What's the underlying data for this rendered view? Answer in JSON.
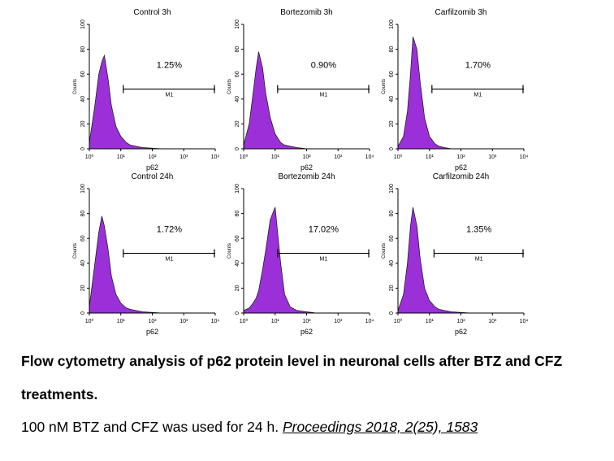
{
  "chart_data": [
    {
      "type": "area",
      "title": "Control 3h",
      "x_label": "p62",
      "y_label": "Counts",
      "xscale": "log",
      "color": "#9b30d9",
      "x": [
        1,
        1.5,
        2,
        2.5,
        3,
        4,
        5,
        7,
        10,
        15,
        20,
        30,
        50,
        100,
        200,
        1000
      ],
      "values": [
        5,
        35,
        60,
        70,
        75,
        55,
        35,
        18,
        10,
        5,
        3,
        2,
        1,
        0.5,
        0,
        0
      ],
      "xlim": [
        1,
        10000
      ],
      "ylim": [
        0,
        100
      ],
      "xticks": [
        {
          "value": 1,
          "label": "10⁰"
        },
        {
          "value": 10,
          "label": "10¹"
        },
        {
          "value": 100,
          "label": "10²"
        },
        {
          "value": 1000,
          "label": "10³"
        },
        {
          "value": 10000,
          "label": "10⁴"
        }
      ],
      "yticks": [
        0,
        20,
        40,
        60,
        80,
        100
      ],
      "gate": {
        "range": [
          12,
          10000
        ],
        "label": "M1",
        "percent": "1.25%"
      }
    },
    {
      "type": "area",
      "title": "Bortezomib 3h",
      "x_label": "p62",
      "y_label": "Counts",
      "xscale": "log",
      "color": "#9b30d9",
      "x": [
        1,
        1.5,
        2,
        2.5,
        3,
        4,
        5,
        7,
        10,
        15,
        20,
        30,
        50,
        100,
        200,
        1000
      ],
      "values": [
        3,
        20,
        45,
        65,
        78,
        65,
        45,
        25,
        12,
        5,
        3,
        2,
        1,
        0,
        0,
        0
      ],
      "xlim": [
        1,
        10000
      ],
      "ylim": [
        0,
        100
      ],
      "xticks": [
        {
          "value": 1,
          "label": "10⁰"
        },
        {
          "value": 10,
          "label": "10¹"
        },
        {
          "value": 100,
          "label": "10²"
        },
        {
          "value": 1000,
          "label": "10³"
        },
        {
          "value": 10000,
          "label": "10⁴"
        }
      ],
      "yticks": [
        0,
        20,
        40,
        60,
        80,
        100
      ],
      "gate": {
        "range": [
          12,
          10000
        ],
        "label": "M1",
        "percent": "0.90%"
      }
    },
    {
      "type": "area",
      "title": "Carfilzomib 3h",
      "x_label": "p62",
      "y_label": "Counts",
      "xscale": "log",
      "color": "#9b30d9",
      "x": [
        1,
        1.5,
        2,
        2.5,
        3,
        4,
        5,
        7,
        10,
        15,
        20,
        30,
        50,
        100,
        200,
        1000
      ],
      "values": [
        2,
        10,
        30,
        60,
        90,
        80,
        55,
        25,
        10,
        4,
        2,
        1,
        0,
        0,
        0,
        0
      ],
      "xlim": [
        1,
        10000
      ],
      "ylim": [
        0,
        100
      ],
      "xticks": [
        {
          "value": 1,
          "label": "10⁰"
        },
        {
          "value": 10,
          "label": "10¹"
        },
        {
          "value": 100,
          "label": "10²"
        },
        {
          "value": 1000,
          "label": "10³"
        },
        {
          "value": 10000,
          "label": "10⁴"
        }
      ],
      "yticks": [
        0,
        20,
        40,
        60,
        80,
        100
      ],
      "gate": {
        "range": [
          12,
          10000
        ],
        "label": "M1",
        "percent": "1.70%"
      }
    },
    {
      "type": "area",
      "title": "Control 24h",
      "x_label": "p62",
      "y_label": "Counts",
      "xscale": "log",
      "color": "#9b30d9",
      "x": [
        1,
        1.5,
        2,
        2.5,
        3,
        4,
        5,
        7,
        10,
        15,
        20,
        30,
        50,
        100,
        200,
        1000
      ],
      "values": [
        5,
        40,
        65,
        78,
        70,
        50,
        30,
        15,
        8,
        4,
        3,
        2,
        1,
        0.5,
        0,
        0
      ],
      "xlim": [
        1,
        10000
      ],
      "ylim": [
        0,
        100
      ],
      "xticks": [
        {
          "value": 1,
          "label": "10⁰"
        },
        {
          "value": 10,
          "label": "10¹"
        },
        {
          "value": 100,
          "label": "10²"
        },
        {
          "value": 1000,
          "label": "10³"
        },
        {
          "value": 10000,
          "label": "10⁴"
        }
      ],
      "yticks": [
        0,
        20,
        40,
        60,
        80,
        100
      ],
      "gate": {
        "range": [
          12,
          10000
        ],
        "label": "M1",
        "percent": "1.72%"
      }
    },
    {
      "type": "area",
      "title": "Bortezomib 24h",
      "x_label": "p62",
      "y_label": "Counts",
      "xscale": "log",
      "color": "#9b30d9",
      "x": [
        1,
        1.5,
        2,
        2.5,
        3,
        4,
        5,
        7,
        10,
        15,
        20,
        30,
        50,
        100,
        200,
        1000
      ],
      "values": [
        2,
        4,
        8,
        12,
        18,
        35,
        50,
        75,
        85,
        40,
        15,
        5,
        2,
        1,
        0,
        0
      ],
      "xlim": [
        1,
        10000
      ],
      "ylim": [
        0,
        100
      ],
      "xticks": [
        {
          "value": 1,
          "label": "10⁰"
        },
        {
          "value": 10,
          "label": "10¹"
        },
        {
          "value": 100,
          "label": "10²"
        },
        {
          "value": 1000,
          "label": "10³"
        },
        {
          "value": 10000,
          "label": "10⁴"
        }
      ],
      "yticks": [
        0,
        20,
        40,
        60,
        80,
        100
      ],
      "gate": {
        "range": [
          12,
          10000
        ],
        "label": "M1",
        "percent": "17.02%"
      }
    },
    {
      "type": "area",
      "title": "Carfilzomib 24h",
      "x_label": "p62",
      "y_label": "Counts",
      "xscale": "log",
      "color": "#9b30d9",
      "x": [
        1,
        1.5,
        2,
        2.5,
        3,
        4,
        5,
        7,
        10,
        15,
        20,
        30,
        50,
        100,
        200,
        1000
      ],
      "values": [
        2,
        15,
        40,
        70,
        85,
        70,
        45,
        20,
        10,
        5,
        3,
        2,
        1,
        0.5,
        0,
        0
      ],
      "xlim": [
        1,
        10000
      ],
      "ylim": [
        0,
        100
      ],
      "xticks": [
        {
          "value": 1,
          "label": "10⁰"
        },
        {
          "value": 10,
          "label": "10¹"
        },
        {
          "value": 100,
          "label": "10²"
        },
        {
          "value": 1000,
          "label": "10³"
        },
        {
          "value": 10000,
          "label": "10⁴"
        }
      ],
      "yticks": [
        0,
        20,
        40,
        60,
        80,
        100
      ],
      "gate": {
        "range": [
          14,
          10000
        ],
        "label": "M1",
        "percent": "1.35%"
      }
    }
  ],
  "caption": {
    "heading": "Flow cytometry analysis of p62 protein level in neuronal cells after BTZ and CFZ treatments.",
    "note": "100 nM BTZ and CFZ was used for 24 h.",
    "citation": "Proceedings 2018, 2(25), 1583"
  }
}
